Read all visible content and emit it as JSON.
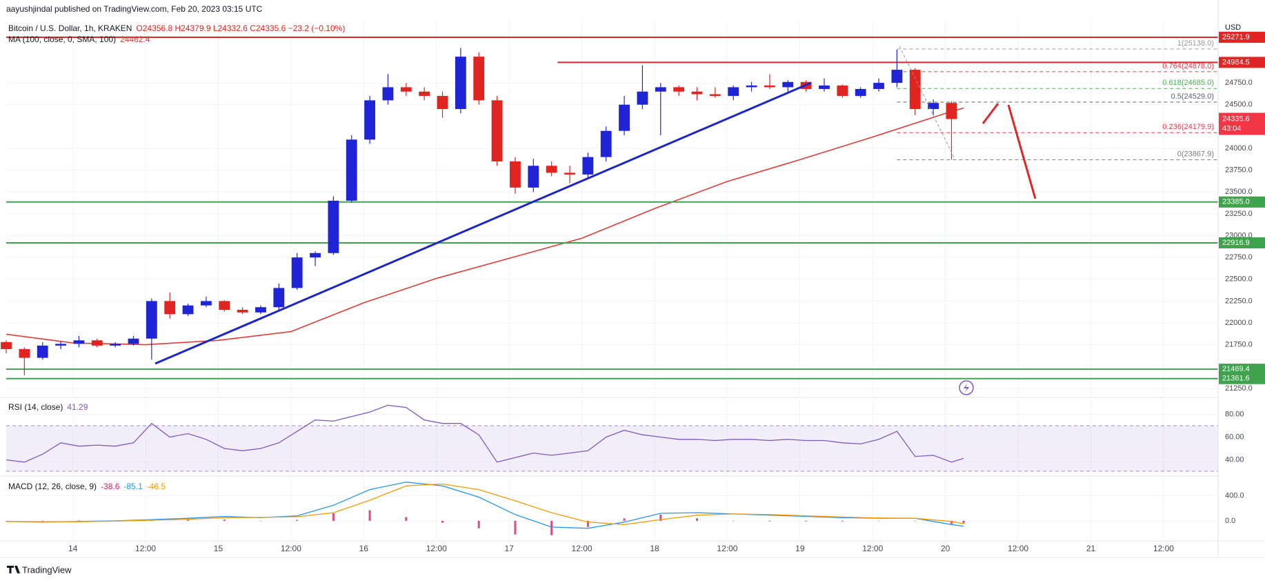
{
  "header": {
    "publisher": "aayushjindal published on TradingView.com, Feb 20, 2023 03:15 UTC",
    "footer": "TradingView",
    "currency": "USD"
  },
  "time_axis": {
    "xlim": [
      13,
      213
    ],
    "xticks": [
      {
        "value": 24,
        "label": "14"
      },
      {
        "value": 36,
        "label": "12:00"
      },
      {
        "value": 48,
        "label": "15"
      },
      {
        "value": 60,
        "label": "12:00"
      },
      {
        "value": 72,
        "label": "16"
      },
      {
        "value": 84,
        "label": "12:00"
      },
      {
        "value": 96,
        "label": "17"
      },
      {
        "value": 108,
        "label": "12:00"
      },
      {
        "value": 120,
        "label": "18"
      },
      {
        "value": 132,
        "label": "12:00"
      },
      {
        "value": 144,
        "label": "19"
      },
      {
        "value": 156,
        "label": "12:00"
      },
      {
        "value": 168,
        "label": "20"
      },
      {
        "value": 180,
        "label": "12:00"
      },
      {
        "value": 192,
        "label": "21"
      },
      {
        "value": 204,
        "label": "12:00"
      }
    ],
    "grid": true
  },
  "chart_data": [
    {
      "type": "candlestick",
      "title": "Bitcoin / U.S. Dollar, 1h, KRAKEN",
      "legend": "O24356.8 H24379.9 L24332.6 C24335.6 −23.2 (−0.10%)",
      "up_color": "#1f25d6",
      "down_color": "#e0241f",
      "ylim": [
        21170,
        25470
      ],
      "yticks": [
        {
          "value": 21250,
          "label": "21250.0"
        },
        {
          "value": 21750,
          "label": "21750.0"
        },
        {
          "value": 22000,
          "label": "22000.0"
        },
        {
          "value": 22250,
          "label": "22250.0"
        },
        {
          "value": 22500,
          "label": "22500.0"
        },
        {
          "value": 22750,
          "label": "22750.0"
        },
        {
          "value": 23000,
          "label": "23000.0"
        },
        {
          "value": 23250,
          "label": "23250.0"
        },
        {
          "value": 23500,
          "label": "23500.0"
        },
        {
          "value": 23750,
          "label": "23750.0"
        },
        {
          "value": 24000,
          "label": "24000.0"
        },
        {
          "value": 24500,
          "label": "24500.0"
        },
        {
          "value": 24750,
          "label": "24750.0"
        }
      ],
      "x": [
        13,
        16,
        19,
        22,
        25,
        28,
        31,
        34,
        37,
        40,
        43,
        46,
        49,
        52,
        55,
        58,
        61,
        64,
        67,
        70,
        73,
        76,
        79,
        82,
        85,
        88,
        91,
        94,
        97,
        100,
        103,
        106,
        109,
        112,
        115,
        118,
        121,
        124,
        127,
        130,
        133,
        136,
        139,
        142,
        145,
        148,
        151,
        154,
        157,
        160,
        163,
        166,
        169
      ],
      "candles": [
        [
          21780,
          21800,
          21650,
          21700
        ],
        [
          21700,
          21720,
          21400,
          21600
        ],
        [
          21600,
          21780,
          21580,
          21740
        ],
        [
          21740,
          21790,
          21700,
          21760
        ],
        [
          21760,
          21850,
          21720,
          21800
        ],
        [
          21800,
          21820,
          21720,
          21740
        ],
        [
          21740,
          21780,
          21720,
          21760
        ],
        [
          21760,
          21850,
          21740,
          21820
        ],
        [
          21820,
          22280,
          21580,
          22250
        ],
        [
          22250,
          22350,
          22050,
          22100
        ],
        [
          22100,
          22220,
          22080,
          22200
        ],
        [
          22200,
          22300,
          22180,
          22250
        ],
        [
          22250,
          22260,
          22130,
          22150
        ],
        [
          22150,
          22180,
          22100,
          22120
        ],
        [
          22120,
          22200,
          22100,
          22180
        ],
        [
          22180,
          22450,
          22150,
          22400
        ],
        [
          22400,
          22800,
          22380,
          22750
        ],
        [
          22750,
          22820,
          22650,
          22800
        ],
        [
          22800,
          23450,
          22780,
          23400
        ],
        [
          23400,
          24150,
          23380,
          24100
        ],
        [
          24100,
          24600,
          24050,
          24550
        ],
        [
          24550,
          24850,
          24500,
          24700
        ],
        [
          24700,
          24750,
          24600,
          24650
        ],
        [
          24650,
          24700,
          24550,
          24600
        ],
        [
          24600,
          24650,
          24350,
          24450
        ],
        [
          24450,
          25150,
          24400,
          25050
        ],
        [
          25050,
          25100,
          24500,
          24550
        ],
        [
          24550,
          24600,
          23800,
          23850
        ],
        [
          23850,
          23900,
          23480,
          23550
        ],
        [
          23550,
          23880,
          23500,
          23800
        ],
        [
          23800,
          23850,
          23680,
          23720
        ],
        [
          23720,
          23800,
          23600,
          23700
        ],
        [
          23700,
          23950,
          23650,
          23900
        ],
        [
          23900,
          24250,
          23850,
          24200
        ],
        [
          24200,
          24600,
          24150,
          24500
        ],
        [
          24500,
          24950,
          24450,
          24650
        ],
        [
          24650,
          24750,
          24150,
          24700
        ],
        [
          24700,
          24720,
          24600,
          24650
        ],
        [
          24650,
          24700,
          24550,
          24620
        ],
        [
          24620,
          24700,
          24580,
          24600
        ],
        [
          24600,
          24720,
          24550,
          24700
        ],
        [
          24700,
          24760,
          24650,
          24720
        ],
        [
          24720,
          24850,
          24680,
          24700
        ],
        [
          24700,
          24780,
          24650,
          24760
        ],
        [
          24760,
          24780,
          24650,
          24680
        ],
        [
          24680,
          24800,
          24650,
          24720
        ],
        [
          24720,
          24730,
          24580,
          24600
        ],
        [
          24600,
          24700,
          24580,
          24680
        ],
        [
          24680,
          24800,
          24650,
          24750
        ],
        [
          24750,
          25130,
          24700,
          24900
        ],
        [
          24900,
          24920,
          24380,
          24450
        ],
        [
          24450,
          24560,
          24380,
          24520
        ],
        [
          24520,
          24540,
          23870,
          24335.6
        ]
      ],
      "last_price": {
        "label": "24335.6",
        "countdown": "43:04",
        "color": "#f23645"
      },
      "ma": {
        "name": "MA (100, close, 0, SMA, 100)",
        "color": "#e53935",
        "x": [
          13,
          24,
          36,
          48,
          60,
          72,
          84,
          96,
          108,
          120,
          132,
          144,
          156,
          168,
          171
        ],
        "values": [
          21870,
          21770,
          21750,
          21800,
          21900,
          22230,
          22510,
          22740,
          22970,
          23310,
          23620,
          23870,
          24130,
          24400,
          24462.4
        ]
      },
      "levels": [
        {
          "price": 25271.9,
          "label": "25271.9",
          "color": "#e32424"
        },
        {
          "price": 24984.5,
          "label": "24984.5",
          "color": "#e32424",
          "start": 104
        },
        {
          "price": 23385,
          "label": "23385.0",
          "color": "#3fa34d"
        },
        {
          "price": 22916.9,
          "label": "22916.9",
          "color": "#3fa34d"
        },
        {
          "price": 21469.4,
          "label": "21469.4",
          "color": "#3fa34d"
        },
        {
          "price": 21361.6,
          "label": "21361.6",
          "color": "#3fa34d"
        }
      ],
      "fib": {
        "start": 160,
        "levels": [
          {
            "price": 25138,
            "label": "1(25138.0)",
            "color": "#9598a1"
          },
          {
            "price": 24878,
            "label": "0.764(24878.0)",
            "color": "#f23645"
          },
          {
            "price": 24685,
            "label": "0.618(24685.0)",
            "color": "#4caf50"
          },
          {
            "price": 24529,
            "label": "0.5(24529.0)",
            "color": "#5d606b"
          },
          {
            "price": 24179.9,
            "label": "0.236(24179.9)",
            "color": "#f23645"
          },
          {
            "price": 23867.9,
            "label": "0(23867.9)",
            "color": "#787b86"
          }
        ]
      }
    },
    {
      "type": "line",
      "title": "RSI (14, close)",
      "color": "#7e57c2",
      "ylim": [
        27,
        93
      ],
      "yticks": [
        {
          "value": 40,
          "label": "40.00"
        },
        {
          "value": 60,
          "label": "60.00"
        },
        {
          "value": 80,
          "label": "80.00"
        }
      ],
      "bands": [
        30,
        70
      ],
      "x": [
        13,
        16,
        19,
        22,
        25,
        28,
        31,
        34,
        37,
        40,
        43,
        46,
        49,
        52,
        55,
        58,
        61,
        64,
        67,
        70,
        73,
        76,
        79,
        82,
        85,
        88,
        91,
        94,
        97,
        100,
        103,
        106,
        109,
        112,
        115,
        118,
        121,
        124,
        127,
        130,
        133,
        136,
        139,
        142,
        145,
        148,
        151,
        154,
        157,
        160,
        163,
        166,
        169,
        171
      ],
      "values": [
        40,
        38,
        45,
        55,
        52,
        53,
        52,
        55,
        72,
        60,
        63,
        58,
        50,
        48,
        50,
        55,
        65,
        75,
        74,
        78,
        82,
        88,
        86,
        75,
        72,
        72,
        62,
        38,
        42,
        46,
        44,
        46,
        48,
        60,
        66,
        62,
        60,
        58,
        58,
        57,
        58,
        58,
        57,
        58,
        57,
        57,
        55,
        54,
        58,
        65,
        43,
        44,
        38,
        41.29
      ]
    },
    {
      "type": "macd",
      "title": "MACD (12, 26, close, 9)",
      "ylim": [
        -300,
        684
      ],
      "yticks": [
        {
          "value": 0,
          "label": "0.0"
        },
        {
          "value": 400,
          "label": "400.0"
        }
      ],
      "x": [
        13,
        19,
        25,
        31,
        37,
        43,
        49,
        55,
        61,
        67,
        73,
        79,
        85,
        91,
        97,
        103,
        109,
        115,
        121,
        127,
        133,
        139,
        145,
        151,
        157,
        163,
        169,
        171
      ],
      "histogram": {
        "color": "#d81b60",
        "values": [
          0,
          -5,
          5,
          5,
          10,
          15,
          20,
          -5,
          15,
          120,
          170,
          60,
          -30,
          -120,
          -220,
          -230,
          -100,
          40,
          100,
          40,
          0,
          -10,
          -10,
          -10,
          -5,
          0,
          -50,
          -38.6
        ]
      },
      "series": [
        {
          "name": "MACD",
          "color": "#2196f3",
          "values": [
            -10,
            -20,
            -10,
            0,
            20,
            40,
            70,
            50,
            80,
            250,
            500,
            620,
            560,
            380,
            100,
            -100,
            -120,
            -20,
            120,
            130,
            110,
            90,
            70,
            50,
            40,
            40,
            -60,
            -85.1
          ]
        },
        {
          "name": "Signal",
          "color": "#ff9800",
          "values": [
            -10,
            -15,
            -15,
            -5,
            10,
            25,
            50,
            55,
            65,
            130,
            330,
            560,
            590,
            500,
            320,
            130,
            -20,
            -60,
            20,
            90,
            110,
            100,
            80,
            60,
            45,
            40,
            -10,
            -46.5
          ]
        }
      ]
    }
  ]
}
